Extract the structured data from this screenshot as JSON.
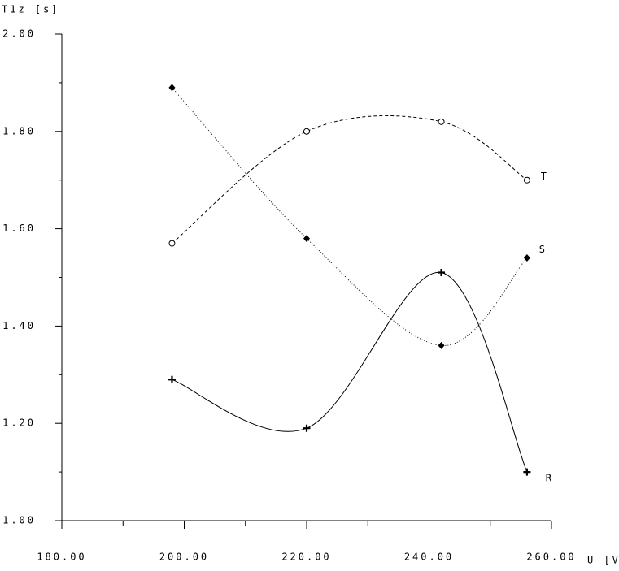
{
  "chart_data": {
    "type": "line",
    "x_label": "U [V]",
    "y_label": "T1z [s]",
    "x": [
      198,
      220,
      242,
      256
    ],
    "series": [
      {
        "name": "T",
        "color": "#000000",
        "marker": "circle",
        "dash": "4,3",
        "values": [
          1.57,
          1.8,
          1.82,
          1.7
        ]
      },
      {
        "name": "S",
        "color": "#000000",
        "marker": "diamond",
        "dash": "1,2",
        "values": [
          1.89,
          1.58,
          1.36,
          1.54
        ]
      },
      {
        "name": "R",
        "color": "#000000",
        "marker": "plus",
        "dash": "none",
        "values": [
          1.29,
          1.19,
          1.51,
          1.1
        ]
      }
    ],
    "xlim": [
      180,
      260
    ],
    "xticks": [
      {
        "value": 180,
        "label": "180.00"
      },
      {
        "value": 200,
        "label": "200.00"
      },
      {
        "value": 220,
        "label": "220.00"
      },
      {
        "value": 240,
        "label": "240.00"
      },
      {
        "value": 260,
        "label": "260.00"
      }
    ],
    "xminorticks": [
      190,
      210,
      230,
      250
    ],
    "ylim": [
      1.0,
      2.0
    ],
    "yticks": [
      {
        "value": 1.0,
        "label": "1.00"
      },
      {
        "value": 1.2,
        "label": "1.20"
      },
      {
        "value": 1.4,
        "label": "1.40"
      },
      {
        "value": 1.6,
        "label": "1.60"
      },
      {
        "value": 1.8,
        "label": "1.80"
      },
      {
        "value": 2.0,
        "label": "2.00"
      }
    ],
    "yminorticks": [
      1.1,
      1.3,
      1.5,
      1.7,
      1.9
    ],
    "grid": false
  }
}
